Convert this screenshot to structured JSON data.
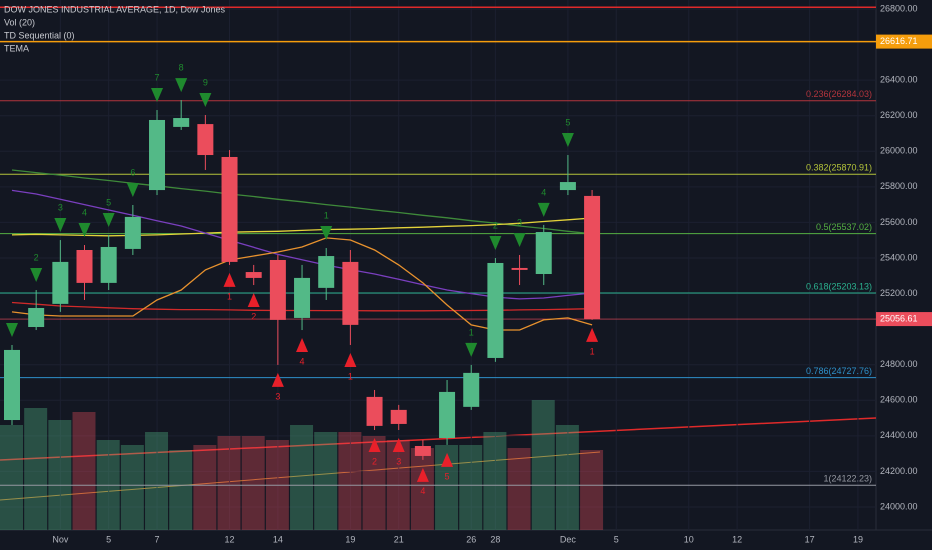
{
  "chart_data": {
    "type": "candlestick",
    "legend": [
      "DOW JONES INDUSTRIAL AVERAGE, 1D, Dow Jones",
      "Vol (20)",
      "TD Sequential (0)",
      "TEMA"
    ],
    "up_color": "#53b987",
    "down_color": "#eb4d5c",
    "open": [
      24489,
      25012,
      25142,
      25445,
      25260,
      25451,
      25782,
      26137,
      26153,
      25968,
      25321,
      25389,
      25063,
      25232,
      25378,
      24619,
      24546,
      24343,
      24388,
      24563,
      24838,
      25344,
      25310,
      25782,
      25749
    ],
    "high": [
      24911,
      25220,
      25501,
      25473,
      25529,
      25698,
      26232,
      26288,
      26204,
      26007,
      25361,
      25417,
      25361,
      25456,
      25445,
      24658,
      24574,
      24377,
      24714,
      24799,
      25400,
      25417,
      25586,
      25979,
      25782
    ],
    "low": [
      24461,
      24995,
      25097,
      25164,
      25220,
      25417,
      25754,
      26120,
      25895,
      25361,
      25248,
      24799,
      24995,
      25164,
      24911,
      24433,
      24433,
      24265,
      24349,
      24546,
      24816,
      25248,
      25248,
      25754,
      25052
    ],
    "close": [
      24883,
      25119,
      25378,
      25260,
      25462,
      25631,
      26176,
      26187,
      25979,
      25378,
      25288,
      25052,
      25288,
      25411,
      25024,
      24456,
      24467,
      24287,
      24647,
      24754,
      25372,
      25333,
      25546,
      25827,
      25056.61
    ],
    "volume": [
      105,
      122,
      110,
      118,
      90,
      85,
      98,
      80,
      85,
      94,
      94,
      90,
      105,
      98,
      98,
      94,
      90,
      82,
      85,
      85,
      98,
      82,
      130,
      105,
      80
    ],
    "volume_lim": [
      0,
      250
    ],
    "overlays": [
      {
        "color": "#3f8a3a",
        "values": [
          25895,
          25880,
          25866,
          25850,
          25836,
          25820,
          25806,
          25790,
          25776,
          25760,
          25746,
          25730,
          25716,
          25700,
          25686,
          25670,
          25656,
          25640,
          25626,
          25610,
          25596,
          25580,
          25566,
          25550,
          25536
        ]
      },
      {
        "color": "#e3d23a",
        "values": [
          25530,
          25533,
          25530,
          25527,
          25525,
          25527,
          25530,
          25535,
          25540,
          25545,
          25548,
          25550,
          25555,
          25560,
          25562,
          25565,
          25570,
          25573,
          25578,
          25582,
          25588,
          25595,
          25605,
          25615,
          25625
        ]
      },
      {
        "color": "#7a3fbf",
        "values": [
          25780,
          25760,
          25730,
          25700,
          25670,
          25640,
          25610,
          25580,
          25540,
          25500,
          25460,
          25420,
          25390,
          25360,
          25335,
          25310,
          25280,
          25250,
          25220,
          25200,
          25180,
          25170,
          25175,
          25190,
          25203
        ]
      },
      {
        "color": "#d12a2a",
        "values": [
          25150,
          25140,
          25130,
          25125,
          25120,
          25115,
          25112,
          25110,
          25110,
          25108,
          25106,
          25105,
          25105,
          25104,
          25104,
          25103,
          25103,
          25103,
          25104,
          25105,
          25106,
          25108,
          25110,
          25112,
          25115
        ]
      },
      {
        "color": "#e8922e",
        "values": [
          25097,
          25080,
          25074,
          25074,
          25074,
          25074,
          25164,
          25220,
          25333,
          25389,
          25411,
          25434,
          25462,
          25513,
          25501,
          25445,
          25361,
          25260,
          25136,
          25024,
          24995,
          24995,
          25052,
          25063,
          25024
        ]
      }
    ],
    "levels": [
      {
        "label": "0.236(26284.03)",
        "value": 26284.03,
        "color": "#b2353d"
      },
      {
        "label": "0.382(25870.91)",
        "value": 25870.91,
        "color": "#b4c43a"
      },
      {
        "label": "0.5(25537.02)",
        "value": 25537.02,
        "color": "#54b043"
      },
      {
        "label": "0.618(25203.13)",
        "value": 25203.13,
        "color": "#2bb28f"
      },
      {
        "label": "0.786(24727.76)",
        "value": 24727.76,
        "color": "#2e90c9"
      },
      {
        "label": "1(24122.23)",
        "value": 24122.23,
        "color": "#9598a1"
      }
    ],
    "resistance": {
      "value": 26810,
      "color": "#e02a2a"
    },
    "price_lines": [
      {
        "label": "26616.71",
        "value": 26616.71,
        "color": "#f59d0c"
      },
      {
        "label": "25056.61",
        "value": 25056.61,
        "color": "#eb4d5c"
      }
    ],
    "signals": [
      {
        "index": 0,
        "label": null,
        "kind": "down"
      },
      {
        "index": 1,
        "label": "2",
        "kind": "down"
      },
      {
        "index": 2,
        "label": "3",
        "kind": "down"
      },
      {
        "index": 3,
        "label": "4",
        "kind": "down"
      },
      {
        "index": 4,
        "label": "5",
        "kind": "down"
      },
      {
        "index": 5,
        "label": "6",
        "kind": "down"
      },
      {
        "index": 6,
        "label": "7",
        "kind": "down"
      },
      {
        "index": 7,
        "label": "8",
        "kind": "down"
      },
      {
        "index": 8,
        "label": "9",
        "kind": "down"
      },
      {
        "index": 9,
        "label": "1",
        "kind": "up"
      },
      {
        "index": 10,
        "label": "2",
        "kind": "up"
      },
      {
        "index": 11,
        "label": "3",
        "kind": "up"
      },
      {
        "index": 12,
        "label": "4",
        "kind": "up"
      },
      {
        "index": 13,
        "label": "1",
        "kind": "down"
      },
      {
        "index": 14,
        "label": "1",
        "kind": "up"
      },
      {
        "index": 15,
        "label": "2",
        "kind": "up"
      },
      {
        "index": 16,
        "label": "3",
        "kind": "up"
      },
      {
        "index": 17,
        "label": "4",
        "kind": "up"
      },
      {
        "index": 18,
        "label": "5",
        "kind": "up"
      },
      {
        "index": 19,
        "label": "1",
        "kind": "down"
      },
      {
        "index": 20,
        "label": "2",
        "kind": "down"
      },
      {
        "index": 21,
        "label": "3",
        "kind": "down"
      },
      {
        "index": 22,
        "label": "4",
        "kind": "down"
      },
      {
        "index": 23,
        "label": "5",
        "kind": "down"
      },
      {
        "index": 24,
        "label": "1",
        "kind": "up"
      }
    ],
    "xticks": [
      {
        "value": 2,
        "label": "Nov"
      },
      {
        "value": 4,
        "label": "5"
      },
      {
        "value": 6,
        "label": "7"
      },
      {
        "value": 9,
        "label": "12"
      },
      {
        "value": 11,
        "label": "14"
      },
      {
        "value": 14,
        "label": "19"
      },
      {
        "value": 16,
        "label": "21"
      },
      {
        "value": 19,
        "label": "26"
      },
      {
        "value": 20,
        "label": "28"
      },
      {
        "value": 23,
        "label": "Dec"
      },
      {
        "value": 25,
        "label": "5"
      },
      {
        "value": 28,
        "label": "10"
      },
      {
        "value": 30,
        "label": "12"
      },
      {
        "value": 33,
        "label": "17"
      },
      {
        "value": 35,
        "label": "19"
      }
    ],
    "ylim": [
      24000,
      26800
    ],
    "yticks": [
      {
        "value": 24000,
        "label": "24000.00"
      },
      {
        "value": 24200,
        "label": "24200.00"
      },
      {
        "value": 24400,
        "label": "24400.00"
      },
      {
        "value": 24600,
        "label": "24600.00"
      },
      {
        "value": 24800,
        "label": "24800.00"
      },
      {
        "value": 25200,
        "label": "25200.00"
      },
      {
        "value": 25400,
        "label": "25400.00"
      },
      {
        "value": 25600,
        "label": "25600.00"
      },
      {
        "value": 25800,
        "label": "25800.00"
      },
      {
        "value": 26000,
        "label": "26000.00"
      },
      {
        "value": 26200,
        "label": "26200.00"
      },
      {
        "value": 26400,
        "label": "26400.00"
      },
      {
        "value": 26800,
        "label": "26800.00"
      }
    ],
    "grid": true
  }
}
